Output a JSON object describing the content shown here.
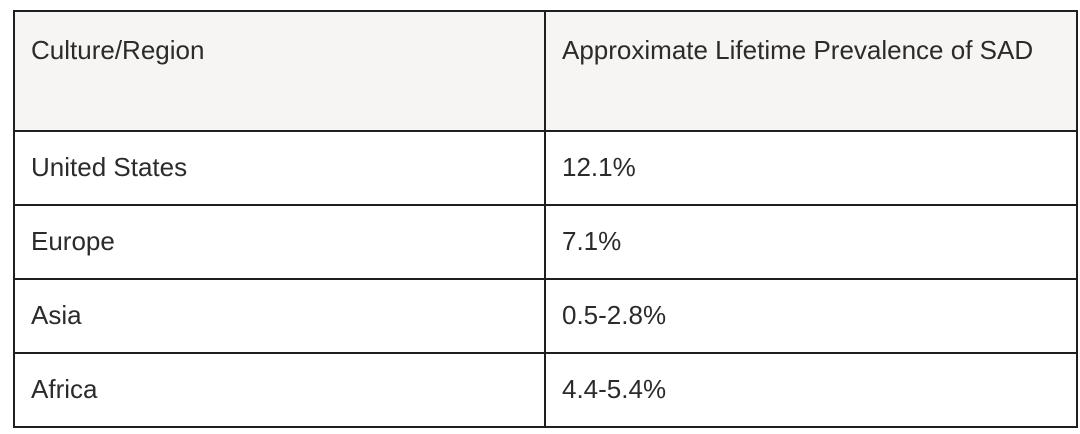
{
  "table": {
    "headers": [
      "Culture/Region",
      "Approximate Lifetime Prevalence of SAD"
    ],
    "rows": [
      [
        "United States",
        "12.1%"
      ],
      [
        "Europe",
        "7.1%"
      ],
      [
        "Asia",
        "0.5-2.8%"
      ],
      [
        "Africa",
        "4.4-5.4%"
      ]
    ]
  }
}
